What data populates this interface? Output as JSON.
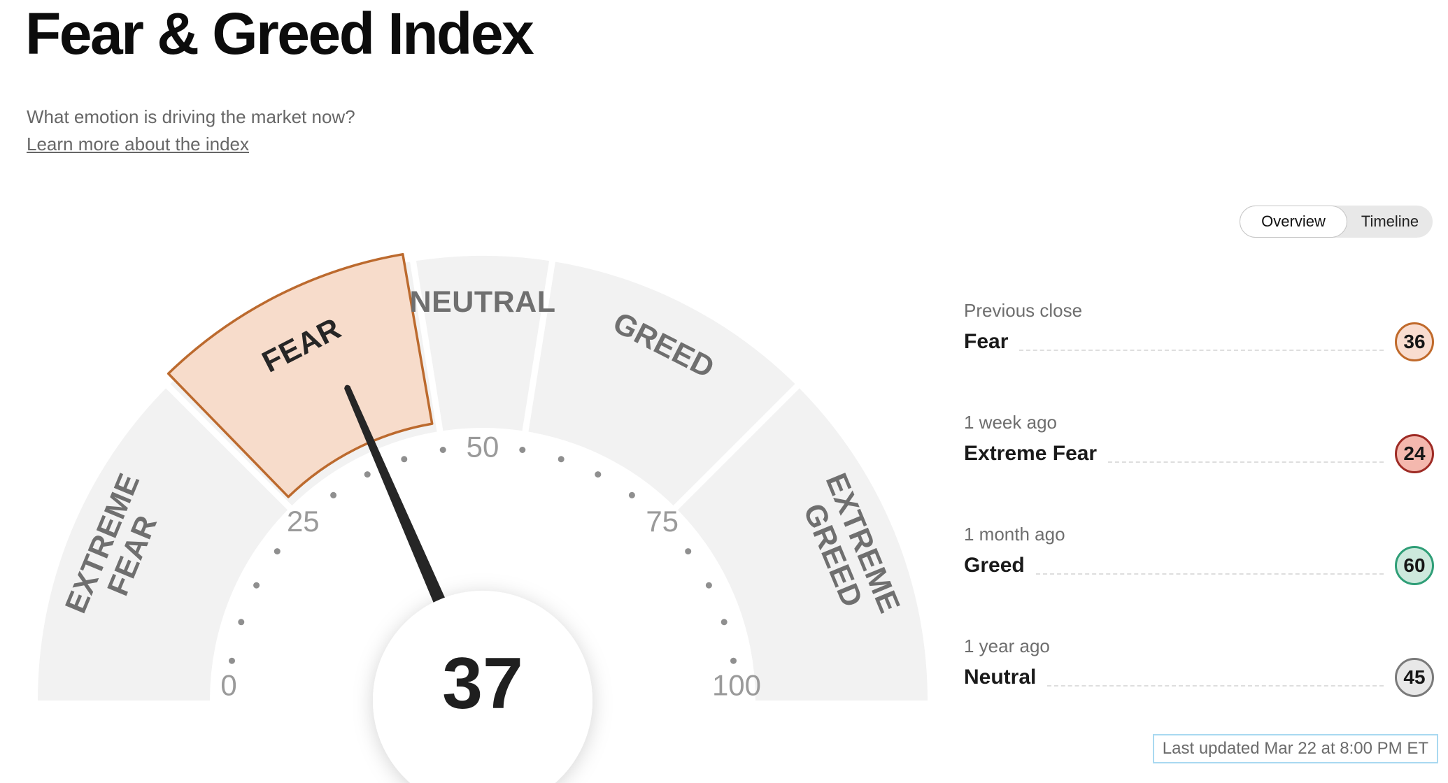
{
  "page": {
    "title": "Fear & Greed Index",
    "subtitle": "What emotion is driving the market now?",
    "link_text": "Learn more about the index"
  },
  "toggle": {
    "options": [
      "Overview",
      "Timeline"
    ],
    "selected": "Overview"
  },
  "chart_data": {
    "type": "gauge",
    "title": "Fear & Greed Index",
    "value": 37,
    "current_mood": "Fear",
    "min": 0,
    "max": 100,
    "tick_labels": [
      0,
      25,
      50,
      75,
      100
    ],
    "dot_tick_step": 5,
    "segments": [
      {
        "label": "EXTREME FEAR",
        "from": 0,
        "to": 25,
        "active": false
      },
      {
        "label": "FEAR",
        "from": 25,
        "to": 45,
        "active": true
      },
      {
        "label": "NEUTRAL",
        "from": 45,
        "to": 55,
        "active": false
      },
      {
        "label": "GREED",
        "from": 55,
        "to": 75,
        "active": false
      },
      {
        "label": "EXTREME GREED",
        "from": 75,
        "to": 100,
        "active": false
      }
    ],
    "colors": {
      "segment_fill": "#f2f2f2",
      "active_fill": "#f7dccb",
      "active_stroke": "#bc6a2e",
      "needle": "#262626",
      "segment_label": "#6f6f6f",
      "active_segment_label": "#262626",
      "tick_label": "#9a9a9a",
      "dot": "#8f8f8f",
      "value_text": "#1f1f1f"
    }
  },
  "history": [
    {
      "period": "Previous close",
      "label": "Fear",
      "value": 36,
      "badge_bg": "#f9ddd0",
      "badge_border": "#c06a2b"
    },
    {
      "period": "1 week ago",
      "label": "Extreme Fear",
      "value": 24,
      "badge_bg": "#f4b8ae",
      "badge_border": "#9e2b25"
    },
    {
      "period": "1 month ago",
      "label": "Greed",
      "value": 60,
      "badge_bg": "#cde9dd",
      "badge_border": "#2f9e77"
    },
    {
      "period": "1 year ago",
      "label": "Neutral",
      "value": 45,
      "badge_bg": "#e8e8e8",
      "badge_border": "#7a7a7a"
    }
  ],
  "footer": {
    "last_updated": "Last updated Mar 22 at 8:00 PM ET"
  }
}
